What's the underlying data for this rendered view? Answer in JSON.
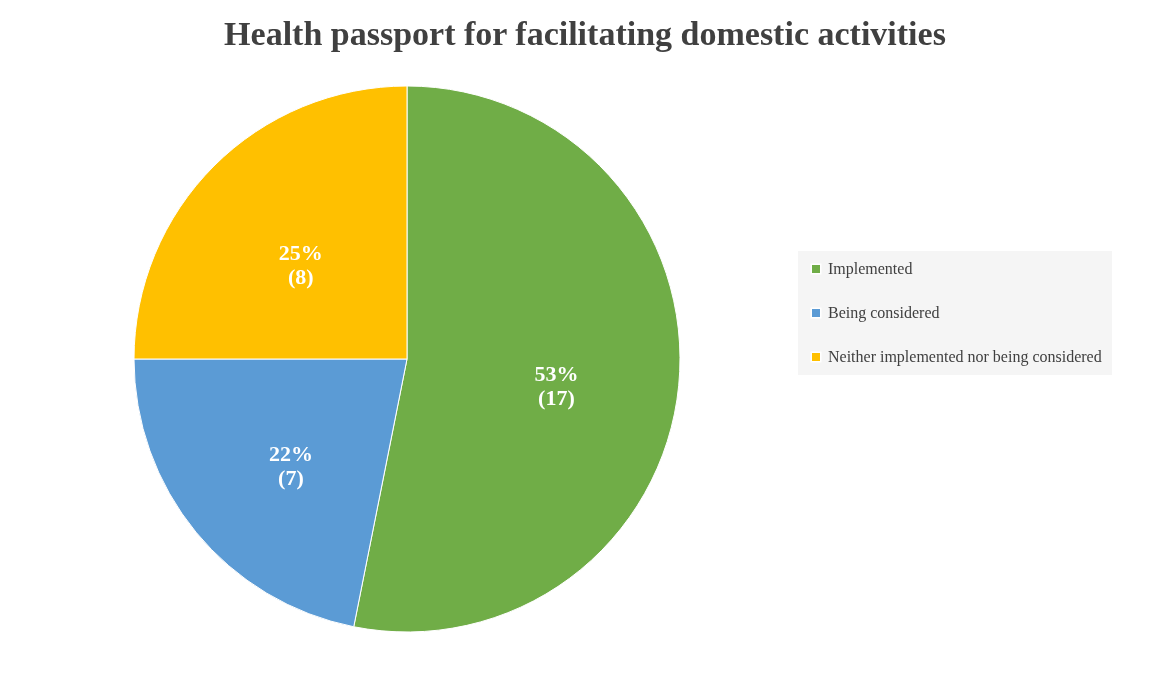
{
  "chart_data": {
    "type": "pie",
    "title": "Health passport for facilitating domestic activities",
    "categories": [
      "Implemented",
      "Being considered",
      "Neither implemented nor being considered"
    ],
    "values": [
      17,
      7,
      8
    ],
    "value_labels": [
      "53%\n(17)",
      "22%\n(7)",
      "25%\n(8)"
    ],
    "colors": [
      "#70ad47",
      "#5b9bd5",
      "#ffc000"
    ],
    "legend": "right"
  }
}
